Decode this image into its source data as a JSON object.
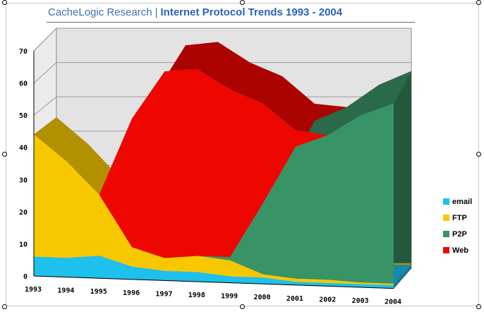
{
  "title": {
    "org": "CacheLogic Research",
    "separator": "|",
    "main": "Internet Protocol Trends 1993 - 2004"
  },
  "chart_data": {
    "type": "area",
    "x": [
      "1993",
      "1994",
      "1995",
      "1996",
      "1997",
      "1998",
      "1999",
      "2000",
      "2001",
      "2002",
      "2003",
      "2004"
    ],
    "ylim": [
      0,
      70
    ],
    "yticks": [
      0,
      10,
      20,
      30,
      40,
      50,
      60,
      70
    ],
    "stacked": true,
    "series": [
      {
        "name": "email",
        "color": "#1ec0ec",
        "values": [
          6,
          6,
          7,
          4,
          3,
          3,
          2,
          2,
          1,
          1,
          1,
          1
        ]
      },
      {
        "name": "FTP",
        "color": "#f7c800",
        "values": [
          38,
          30,
          19,
          6,
          4,
          5,
          5,
          1,
          1,
          1,
          0.5,
          0.5
        ]
      },
      {
        "name": "P2P",
        "color": "#389366",
        "values": [
          0,
          0,
          0,
          0,
          0,
          0,
          1,
          22,
          41,
          45,
          52,
          56
        ]
      },
      {
        "name": "Web",
        "color": "#ee0600",
        "values": [
          0,
          0,
          0,
          40,
          58,
          58,
          52,
          31,
          5,
          0,
          0,
          0
        ]
      }
    ],
    "grid": true,
    "legend": "right",
    "three_d": true
  }
}
